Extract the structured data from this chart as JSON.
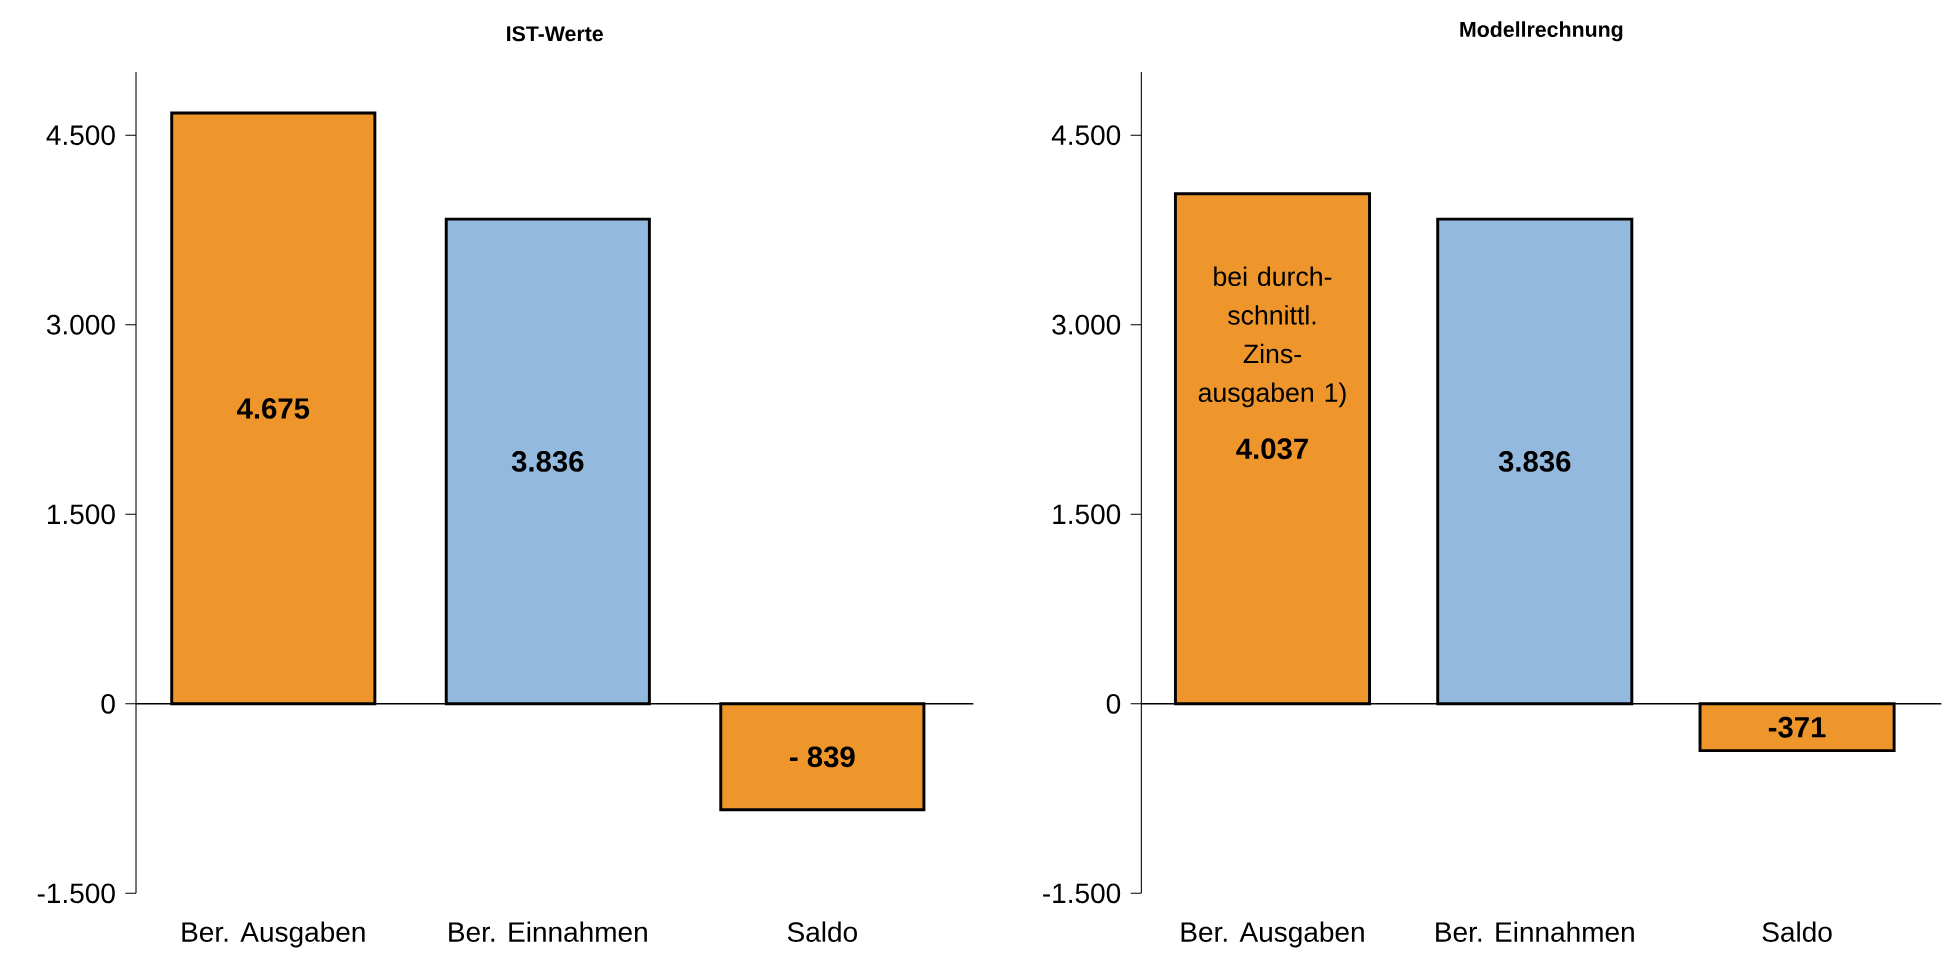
{
  "chart_data": [
    {
      "type": "bar",
      "title": "IST-Werte",
      "categories": [
        "Ber. Ausgaben",
        "Ber. Einnahmen",
        "Saldo"
      ],
      "values": [
        4675,
        3836,
        -839
      ],
      "colors": [
        "#ee952c",
        "#94b9df",
        "#ee952c"
      ],
      "value_labels": [
        "4.675",
        "3.836",
        "- 839"
      ],
      "ylim": [
        -1500,
        5000
      ],
      "yticks": [
        {
          "value": -1500,
          "label": "-1.500"
        },
        0,
        {
          "value": 1500,
          "label": "1.500"
        },
        {
          "value": 3000,
          "label": "3.000"
        },
        {
          "value": 4500,
          "label": "4.500"
        }
      ]
    },
    {
      "type": "bar",
      "title": "Modellrechnung",
      "categories": [
        "Ber. Ausgaben",
        "Ber. Einnahmen",
        "Saldo"
      ],
      "values": [
        4037,
        3836,
        -371
      ],
      "colors": [
        "#ee952c",
        "#94b9df",
        "#ee952c"
      ],
      "value_labels": [
        "4.037",
        "3.836",
        "-371"
      ],
      "annotations": [
        "bei durch-schnittl. Zins-ausgaben 1)"
      ],
      "ylim": [
        -1500,
        5000
      ],
      "yticks": [
        {
          "value": -1500,
          "label": "-1.500"
        },
        0,
        {
          "value": 1500,
          "label": "1.500"
        },
        {
          "value": 3000,
          "label": "3.000"
        },
        {
          "value": 4500,
          "label": "4.500"
        }
      ]
    }
  ]
}
